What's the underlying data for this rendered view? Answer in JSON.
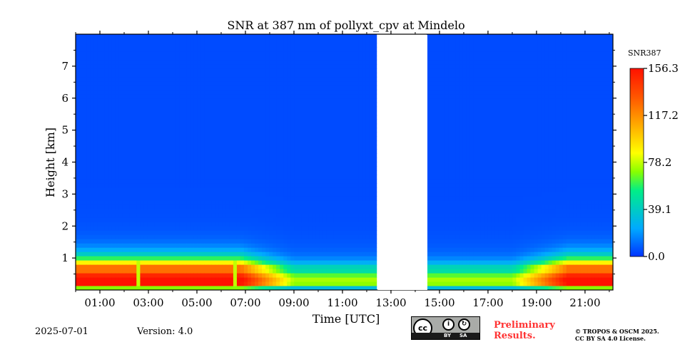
{
  "chart_data": {
    "type": "heatmap",
    "title": "SNR at 387 nm of pollyxt_cpv at Mindelo",
    "xlabel": "Time [UTC]",
    "ylabel": "Height [km]",
    "x_unit_hours": true,
    "xlim_hours": [
      0.0,
      22.15
    ],
    "ylim_km": [
      0.0,
      8.0
    ],
    "x_ticks": [
      "01:00",
      "03:00",
      "05:00",
      "07:00",
      "09:00",
      "11:00",
      "13:00",
      "15:00",
      "17:00",
      "19:00",
      "21:00"
    ],
    "x_tick_hours": [
      1,
      3,
      5,
      7,
      9,
      11,
      13,
      15,
      17,
      19,
      21
    ],
    "y_ticks": [
      1,
      2,
      3,
      4,
      5,
      6,
      7
    ],
    "no_data_gap_hours": [
      12.45,
      14.5
    ],
    "colorbar": {
      "label": "SNR387",
      "min": 0.0,
      "max": 156.3,
      "tick_labels": [
        "156.3",
        "117.2",
        "78.2",
        "39.1",
        "0.0"
      ],
      "tick_values": [
        156.3,
        117.2,
        78.2,
        39.1,
        0.0
      ],
      "colormap": [
        "#0033ff",
        "#00aaff",
        "#00ee88",
        "#88ff00",
        "#ffff00",
        "#ffaa00",
        "#ff5500",
        "#ff1100"
      ]
    },
    "features": {
      "near_surface_max_layer_km": [
        0.1,
        0.5
      ],
      "rain_or_cloud_streaks_hours": [
        2.55,
        6.55
      ]
    }
  },
  "footer": {
    "date": "2025-07-01",
    "version": "Version: 4.0",
    "preliminary": [
      "Preliminary",
      "Results."
    ],
    "copyright": [
      "© TROPOS & OSCM 2025.",
      "CC BY SA 4.0 License."
    ],
    "cc": {
      "main": "cc",
      "by": "BY",
      "sa": "SA"
    }
  }
}
